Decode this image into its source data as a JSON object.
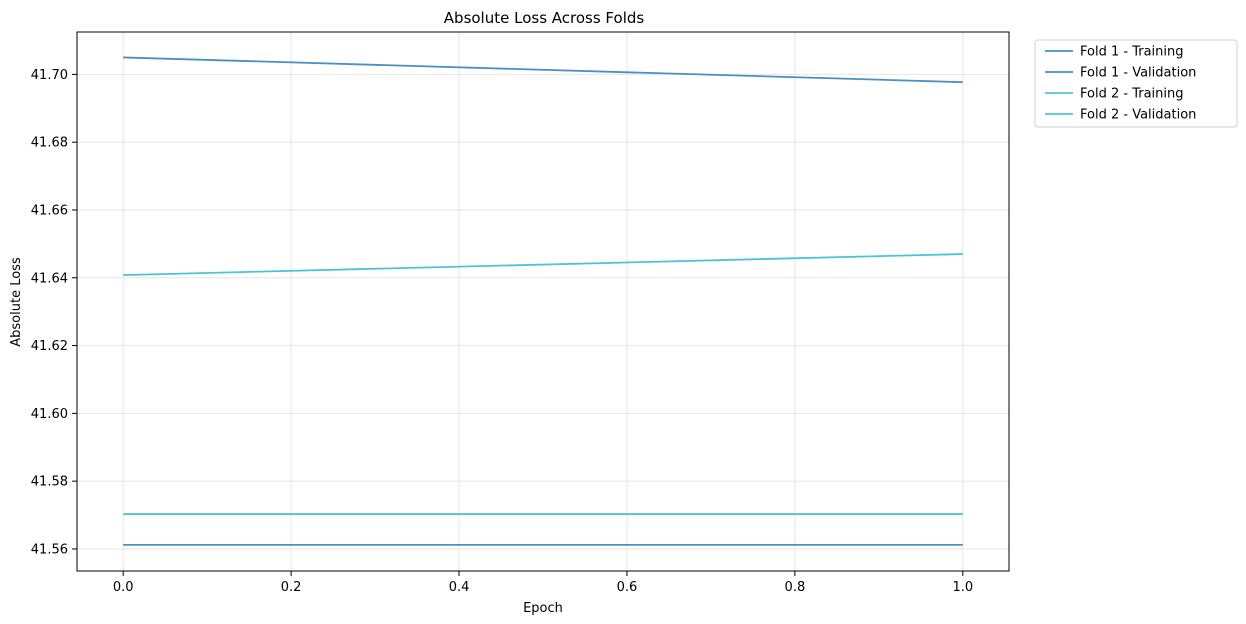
{
  "chart_data": {
    "type": "line",
    "title": "Absolute Loss Across Folds",
    "xlabel": "Epoch",
    "ylabel": "Absolute Loss",
    "x": [
      0,
      1
    ],
    "xlim": [
      -0.055,
      1.055
    ],
    "ylim": [
      41.5535,
      41.7125
    ],
    "xticks": [
      0.0,
      0.2,
      0.4,
      0.6,
      0.8,
      1.0
    ],
    "xtick_labels": [
      "0.0",
      "0.2",
      "0.4",
      "0.6",
      "0.8",
      "1.0"
    ],
    "yticks": [
      41.56,
      41.58,
      41.6,
      41.62,
      41.64,
      41.66,
      41.68,
      41.7
    ],
    "ytick_labels": [
      "41.56",
      "41.58",
      "41.60",
      "41.62",
      "41.64",
      "41.66",
      "41.68",
      "41.70"
    ],
    "grid": true,
    "legend_position": "outside-top-right",
    "series": [
      {
        "name": "Fold 1 - Training",
        "values": [
          41.705,
          41.6977
        ],
        "color": "#4a90c2"
      },
      {
        "name": "Fold 1 - Validation",
        "values": [
          41.5612,
          41.5612
        ],
        "color": "#4a90c2"
      },
      {
        "name": "Fold 2 - Training",
        "values": [
          41.6408,
          41.647
        ],
        "color": "#4bc4d6"
      },
      {
        "name": "Fold 2 - Validation",
        "values": [
          41.5703,
          41.5703
        ],
        "color": "#4bc4d6"
      }
    ]
  }
}
